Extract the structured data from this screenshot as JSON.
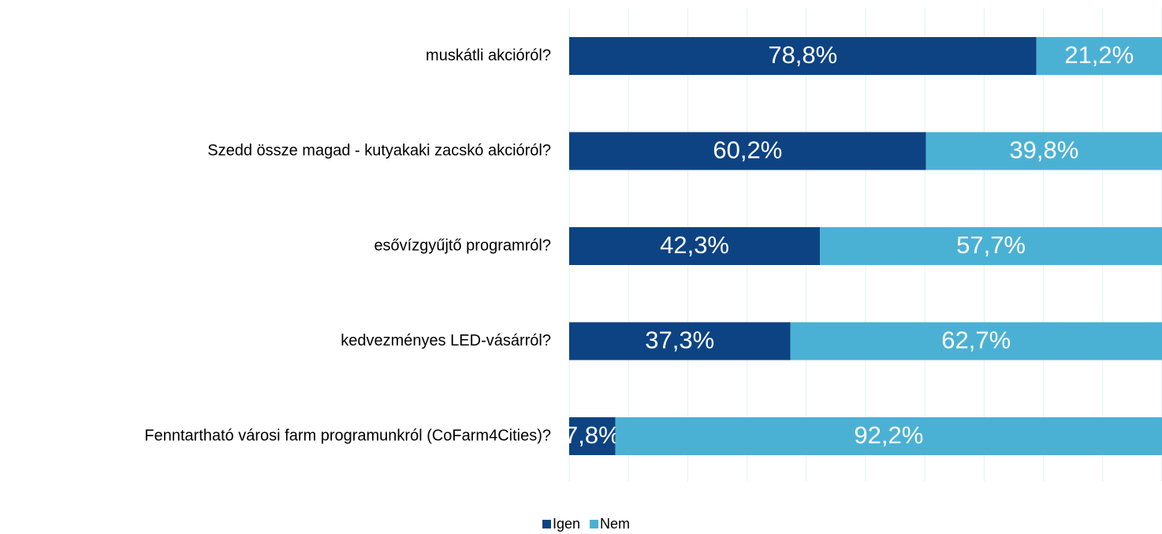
{
  "chart_data": {
    "type": "stacked_barh",
    "categories": [
      "muskátli akcióról?",
      "Szedd össze magad - kutyakaki zacskó akcióról?",
      "esővízgyűjtő programról?",
      "kedvezményes LED-vásárról?",
      "Fenntartható városi farm programunkról (CoFarm4Cities)?"
    ],
    "series": [
      {
        "name": "Igen",
        "color": "#0d4383",
        "values": [
          78.8,
          60.2,
          42.3,
          37.3,
          7.8
        ],
        "value_labels": [
          "78,8%",
          "60,2%",
          "42,3%",
          "37,3%",
          "7,8%"
        ]
      },
      {
        "name": "Nem",
        "color": "#4bb1d4",
        "values": [
          21.2,
          39.8,
          57.7,
          62.7,
          92.2
        ],
        "value_labels": [
          "21,2%",
          "39,8%",
          "57,7%",
          "62,7%",
          "92,2%"
        ]
      }
    ],
    "xlim": [
      0,
      100
    ],
    "xticks": [
      0,
      10,
      20,
      30,
      40,
      50,
      60,
      70,
      80,
      90,
      100
    ],
    "grid": true,
    "legend": "bottom"
  }
}
